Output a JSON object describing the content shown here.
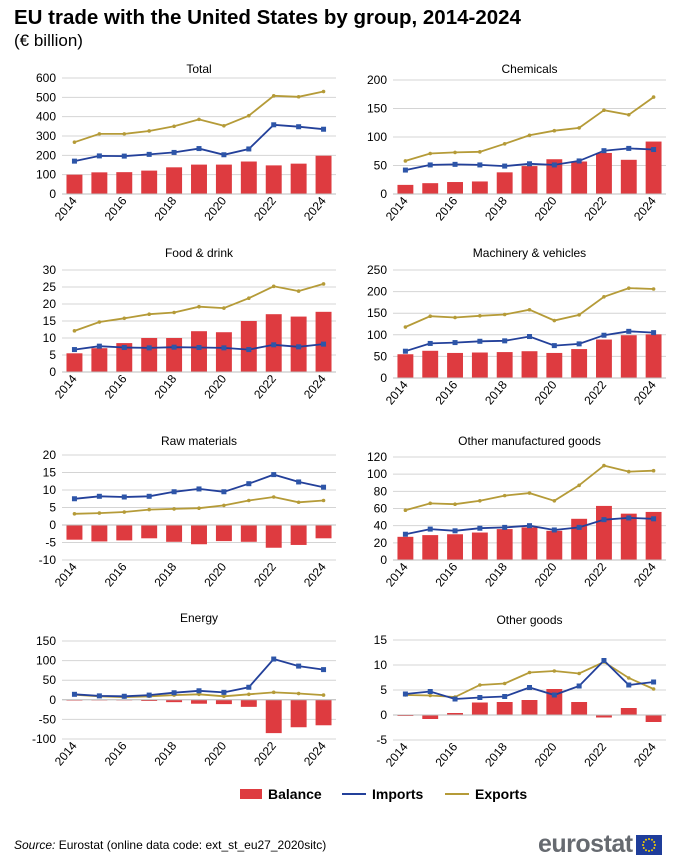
{
  "header": {
    "title": "EU trade with the United States by group, 2014-2024",
    "subtitle": "(€ billion)"
  },
  "colors": {
    "balance": "#de3b40",
    "imports": "#23409a",
    "imports_marker": "#2d55a8",
    "exports": "#b59b38",
    "grid": "#d4d4d4"
  },
  "legend": {
    "balance": "Balance",
    "imports": "Imports",
    "exports": "Exports"
  },
  "footer": {
    "source_label": "Source:",
    "source_text": "Eurostat (online data code: ext_st_eu27_2020sitc)",
    "logo_text": "eurostat",
    "logo_icon": "eu-flag-icon"
  },
  "chart_data": [
    {
      "type": "bar+line",
      "title": "Total",
      "x": [
        2014,
        2015,
        2016,
        2017,
        2018,
        2019,
        2020,
        2021,
        2022,
        2023,
        2024
      ],
      "x_ticks": [
        "2014",
        "2016",
        "2018",
        "2020",
        "2022",
        "2024"
      ],
      "y_ticks": [
        0,
        100,
        200,
        300,
        400,
        500,
        600
      ],
      "ylim": [
        0,
        600
      ],
      "series": [
        {
          "name": "Balance",
          "kind": "bar",
          "values": [
            100,
            112,
            113,
            121,
            138,
            152,
            152,
            168,
            148,
            157,
            198
          ]
        },
        {
          "name": "Imports",
          "kind": "line-marker",
          "values": [
            170,
            197,
            196,
            205,
            215,
            235,
            203,
            233,
            358,
            348,
            335
          ]
        },
        {
          "name": "Exports",
          "kind": "line",
          "values": [
            268,
            311,
            311,
            326,
            350,
            386,
            353,
            405,
            508,
            503,
            530
          ]
        }
      ]
    },
    {
      "type": "bar+line",
      "title": "Chemicals",
      "x": [
        2014,
        2015,
        2016,
        2017,
        2018,
        2019,
        2020,
        2021,
        2022,
        2023,
        2024
      ],
      "x_ticks": [
        "2014",
        "2016",
        "2018",
        "2020",
        "2022",
        "2024"
      ],
      "y_ticks": [
        0,
        50,
        100,
        150,
        200
      ],
      "ylim": [
        0,
        200
      ],
      "series": [
        {
          "name": "Balance",
          "kind": "bar",
          "values": [
            16,
            19,
            21,
            22,
            38,
            49,
            61,
            57,
            72,
            60,
            92
          ]
        },
        {
          "name": "Imports",
          "kind": "line-marker",
          "values": [
            42,
            51,
            52,
            51,
            49,
            53,
            51,
            58,
            76,
            80,
            78
          ]
        },
        {
          "name": "Exports",
          "kind": "line",
          "values": [
            58,
            71,
            73,
            74,
            88,
            103,
            111,
            116,
            147,
            139,
            170
          ]
        }
      ]
    },
    {
      "type": "bar+line",
      "title": "Food & drink",
      "x": [
        2014,
        2015,
        2016,
        2017,
        2018,
        2019,
        2020,
        2021,
        2022,
        2023,
        2024
      ],
      "x_ticks": [
        "2014",
        "2016",
        "2018",
        "2020",
        "2022",
        "2024"
      ],
      "y_ticks": [
        0,
        5,
        10,
        15,
        20,
        25,
        30
      ],
      "ylim": [
        0,
        30
      ],
      "series": [
        {
          "name": "Balance",
          "kind": "bar",
          "values": [
            5.5,
            7.0,
            8.5,
            10.0,
            10.0,
            12.0,
            11.7,
            15.0,
            17.0,
            16.3,
            17.7
          ]
        },
        {
          "name": "Imports",
          "kind": "line-marker",
          "values": [
            6.6,
            7.6,
            7.2,
            7.1,
            7.3,
            7.2,
            7.1,
            6.6,
            8.0,
            7.4,
            8.2
          ]
        },
        {
          "name": "Exports",
          "kind": "line",
          "values": [
            12.1,
            14.7,
            15.8,
            17.0,
            17.5,
            19.2,
            18.8,
            21.7,
            25.2,
            23.8,
            25.9
          ]
        }
      ]
    },
    {
      "type": "bar+line",
      "title": "Machinery & vehicles",
      "x": [
        2014,
        2015,
        2016,
        2017,
        2018,
        2019,
        2020,
        2021,
        2022,
        2023,
        2024
      ],
      "x_ticks": [
        "2014",
        "2016",
        "2018",
        "2020",
        "2022",
        "2024"
      ],
      "y_ticks": [
        0,
        50,
        100,
        150,
        200,
        250
      ],
      "ylim": [
        0,
        250
      ],
      "series": [
        {
          "name": "Balance",
          "kind": "bar",
          "values": [
            55,
            63,
            58,
            59,
            60,
            62,
            58,
            67,
            89,
            99,
            101
          ]
        },
        {
          "name": "Imports",
          "kind": "line-marker",
          "values": [
            62,
            80,
            82,
            85,
            86,
            96,
            75,
            79,
            99,
            108,
            105
          ]
        },
        {
          "name": "Exports",
          "kind": "line",
          "values": [
            118,
            143,
            140,
            144,
            147,
            158,
            133,
            146,
            188,
            208,
            206
          ]
        }
      ]
    },
    {
      "type": "bar+line",
      "title": "Raw materials",
      "x": [
        2014,
        2015,
        2016,
        2017,
        2018,
        2019,
        2020,
        2021,
        2022,
        2023,
        2024
      ],
      "x_ticks": [
        "2014",
        "2016",
        "2018",
        "2020",
        "2022",
        "2024"
      ],
      "y_ticks": [
        -10,
        -5,
        0,
        5,
        10,
        15,
        20
      ],
      "ylim": [
        -10,
        20
      ],
      "series": [
        {
          "name": "Balance",
          "kind": "bar",
          "values": [
            -4.2,
            -4.7,
            -4.4,
            -3.8,
            -4.8,
            -5.5,
            -4.6,
            -4.8,
            -6.5,
            -5.7,
            -3.8
          ]
        },
        {
          "name": "Imports",
          "kind": "line-marker",
          "values": [
            7.5,
            8.2,
            8.0,
            8.2,
            9.5,
            10.3,
            9.5,
            11.8,
            14.4,
            12.3,
            10.8
          ]
        },
        {
          "name": "Exports",
          "kind": "line",
          "values": [
            3.2,
            3.4,
            3.7,
            4.4,
            4.6,
            4.8,
            5.6,
            7.0,
            8.0,
            6.5,
            7.0
          ]
        }
      ]
    },
    {
      "type": "bar+line",
      "title": "Other manufactured goods",
      "x": [
        2014,
        2015,
        2016,
        2017,
        2018,
        2019,
        2020,
        2021,
        2022,
        2023,
        2024
      ],
      "x_ticks": [
        "2014",
        "2016",
        "2018",
        "2020",
        "2022",
        "2024"
      ],
      "y_ticks": [
        0,
        20,
        40,
        60,
        80,
        100,
        120
      ],
      "ylim": [
        0,
        120
      ],
      "series": [
        {
          "name": "Balance",
          "kind": "bar",
          "values": [
            27,
            29,
            30,
            32,
            36,
            38,
            34,
            48,
            63,
            54,
            56
          ]
        },
        {
          "name": "Imports",
          "kind": "line-marker",
          "values": [
            30,
            36,
            34,
            37,
            38,
            40,
            35,
            38,
            47,
            49,
            48
          ]
        },
        {
          "name": "Exports",
          "kind": "line",
          "values": [
            58,
            66,
            65,
            69,
            75,
            78,
            69,
            87,
            110,
            103,
            104
          ]
        }
      ]
    },
    {
      "type": "bar+line",
      "title": "Energy",
      "x": [
        2014,
        2015,
        2016,
        2017,
        2018,
        2019,
        2020,
        2021,
        2022,
        2023,
        2024
      ],
      "x_ticks": [
        "2014",
        "2016",
        "2018",
        "2020",
        "2022",
        "2024"
      ],
      "y_ticks": [
        -100,
        -50,
        0,
        50,
        100,
        150
      ],
      "ylim": [
        -100,
        150
      ],
      "series": [
        {
          "name": "Balance",
          "kind": "bar",
          "values": [
            -2,
            -1,
            -1,
            -3,
            -6,
            -10,
            -11,
            -18,
            -85,
            -70,
            -65
          ]
        },
        {
          "name": "Imports",
          "kind": "line-marker",
          "values": [
            14,
            10,
            9,
            12,
            18,
            23,
            19,
            32,
            104,
            86,
            77
          ]
        },
        {
          "name": "Exports",
          "kind": "line",
          "values": [
            13,
            9,
            7,
            9,
            12,
            14,
            9,
            14,
            19,
            16,
            12
          ]
        }
      ]
    },
    {
      "type": "bar+line",
      "title": "Other goods",
      "x": [
        2014,
        2015,
        2016,
        2017,
        2018,
        2019,
        2020,
        2021,
        2022,
        2023,
        2024
      ],
      "x_ticks": [
        "2014",
        "2016",
        "2018",
        "2020",
        "2022",
        "2024"
      ],
      "y_ticks": [
        -5,
        0,
        5,
        10,
        15
      ],
      "ylim": [
        -5,
        15
      ],
      "series": [
        {
          "name": "Balance",
          "kind": "bar",
          "values": [
            -0.2,
            -0.8,
            0.4,
            2.5,
            2.6,
            3.0,
            5.2,
            2.6,
            -0.5,
            1.4,
            -1.4
          ]
        },
        {
          "name": "Imports",
          "kind": "line-marker",
          "values": [
            4.2,
            4.7,
            3.2,
            3.5,
            3.7,
            5.5,
            4.0,
            5.8,
            10.9,
            6.0,
            6.6
          ]
        },
        {
          "name": "Exports",
          "kind": "line",
          "values": [
            4.0,
            3.9,
            3.6,
            6.0,
            6.3,
            8.5,
            8.8,
            8.3,
            10.6,
            7.4,
            5.2
          ]
        }
      ]
    }
  ]
}
